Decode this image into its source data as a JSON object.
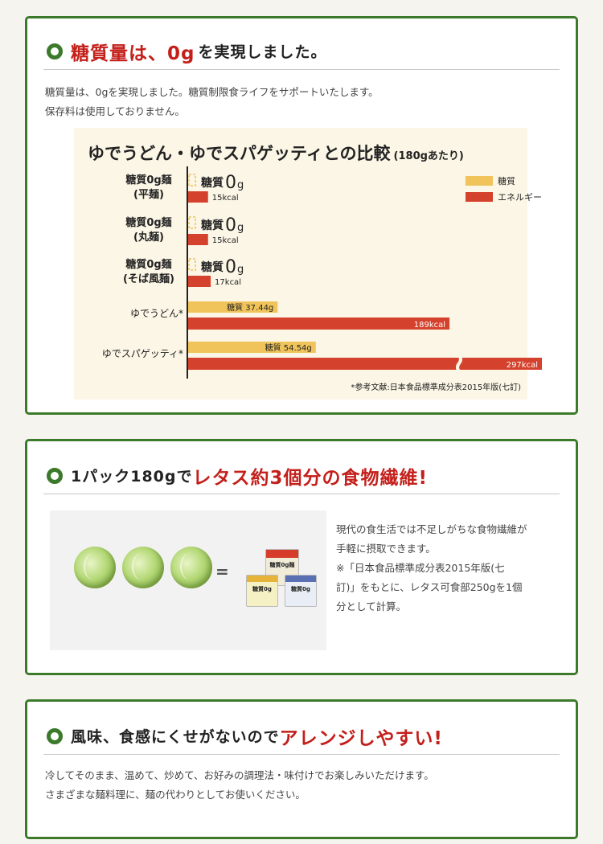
{
  "section1": {
    "title_red": "糖質量は、0g",
    "title_dark": "を実現しました。",
    "body": [
      "糖質量は、0gを実現しました。糖質制限食ライフをサポートいたします。",
      "保存料は使用しておりません。"
    ]
  },
  "chart_data": {
    "type": "bar",
    "title": "ゆでうどん・ゆでスパゲッティとの比較",
    "subtitle": "(180gあたり)",
    "categories": [
      [
        "糖質0g麺",
        "(平麺)"
      ],
      [
        "糖質0g麺",
        "(丸麺)"
      ],
      [
        "糖質0g麺",
        "(そば風麺)"
      ],
      [
        "ゆでうどん*"
      ],
      [
        "ゆでスパゲッティ*"
      ]
    ],
    "series": [
      {
        "name": "糖質",
        "color": "#f0c45a",
        "values": [
          0,
          0,
          0,
          37.44,
          54.54
        ],
        "labels": [
          "糖質0g",
          "糖質0g",
          "糖質0g",
          "37.44g",
          "54.54g"
        ],
        "label_prefix": "糖質"
      },
      {
        "name": "エネルギー",
        "color": "#d4412c",
        "values": [
          15,
          15,
          17,
          189,
          297
        ],
        "labels": [
          "15kcal",
          "15kcal",
          "17kcal",
          "189kcal",
          "297kcal"
        ]
      }
    ],
    "axis_break_on_last": true,
    "source": "*参考文献:日本食品標準成分表2015年版(七訂)"
  },
  "section2": {
    "title_dark": "1パック180gで",
    "title_red": "レタス約3個分の食物繊維!",
    "equals": "=",
    "body": [
      "現代の食生活では不足しがちな食物繊維が",
      "手軽に摂取できます。",
      "※「日本食品標準成分表2015年版(七",
      "訂)」をもとに、レタス可食部250gを1個",
      "分として計算。"
    ],
    "package_labels": [
      "糖質0g麺",
      "糖質0g",
      "糖質0g"
    ]
  },
  "section3": {
    "title_dark": "風味、食感にくせがないので",
    "title_red": "アレンジしやすい!",
    "body": [
      "冷してそのまま、温めて、炒めて、お好みの調理法・味付けでお楽しみいただけます。",
      "さまざまな麺料理に、麺の代わりとしてお使いください。"
    ]
  }
}
